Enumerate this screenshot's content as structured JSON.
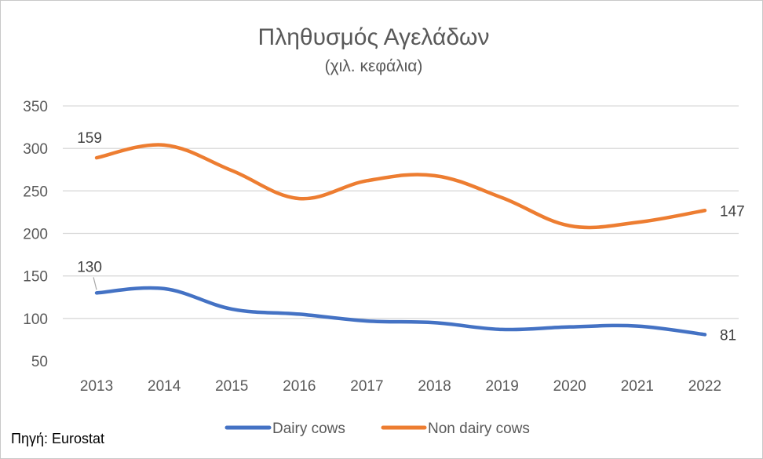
{
  "chart_data": {
    "type": "line",
    "title": "Πληθυσμός Αγελάδων",
    "subtitle": "(χιλ. κεφάλια)",
    "categories": [
      "2013",
      "2014",
      "2015",
      "2016",
      "2017",
      "2018",
      "2019",
      "2020",
      "2021",
      "2022"
    ],
    "ylim": [
      50,
      350
    ],
    "yticks": [
      50,
      100,
      150,
      200,
      250,
      300,
      350
    ],
    "grid": true,
    "legend_position": "bottom",
    "series": [
      {
        "name": "Dairy cows",
        "color": "#4472C4",
        "values": [
          130,
          135,
          111,
          105,
          97,
          95,
          87,
          90,
          91,
          81
        ],
        "labels": [
          {
            "index": 0,
            "text": "130"
          },
          {
            "index": 9,
            "text": "81"
          }
        ]
      },
      {
        "name": "Non dairy cows",
        "color": "#ED7D31",
        "values": [
          289,
          304,
          274,
          241,
          262,
          268,
          242,
          209,
          213,
          227
        ],
        "labels": [
          {
            "index": 0,
            "text": "159"
          },
          {
            "index": 9,
            "text": "147"
          }
        ]
      }
    ],
    "source": "Πηγή: Eurostat"
  }
}
